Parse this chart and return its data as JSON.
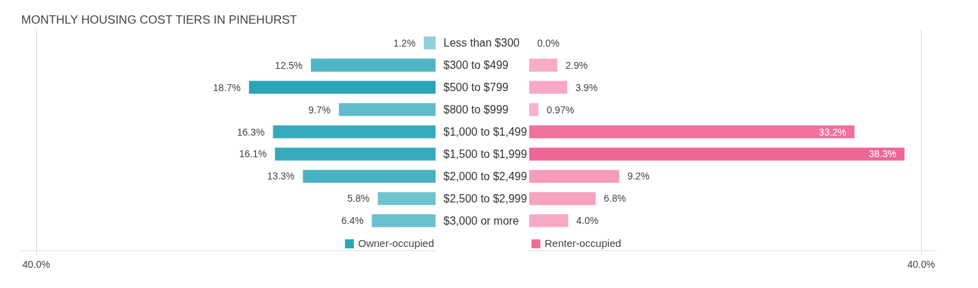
{
  "chart_data": [
    {
      "type": "bar",
      "orientation": "horizontal",
      "title": "MONTHLY HOUSING COST TIERS IN PINEHURST",
      "categories": [
        "Less than $300",
        "$300 to $499",
        "$500 to $799",
        "$800 to $999",
        "$1,000 to $1,499",
        "$1,500 to $1,999",
        "$2,000 to $2,499",
        "$2,500 to $2,999",
        "$3,000 or more"
      ],
      "series": [
        {
          "name": "Owner-occupied",
          "color": "#2aa5b8",
          "colors": [
            "#8fd0da",
            "#4eb5c5",
            "#2aa5b8",
            "#5fbcca",
            "#35aabc",
            "#36abbc",
            "#48b2c2",
            "#6ec3ce",
            "#68c0cc"
          ],
          "values": [
            1.2,
            12.5,
            18.7,
            9.7,
            16.3,
            16.1,
            13.3,
            5.8,
            6.4
          ],
          "value_labels": [
            "1.2%",
            "12.5%",
            "18.7%",
            "9.7%",
            "16.3%",
            "16.1%",
            "13.3%",
            "5.8%",
            "6.4%"
          ]
        }
      ],
      "xlim": [
        41.5,
        0
      ],
      "xticks": [
        {
          "value": 40,
          "label": "40.0%"
        }
      ],
      "grid": "x",
      "legend": "bottom"
    },
    {
      "type": "bar",
      "orientation": "horizontal",
      "categories": [
        null,
        null,
        null,
        null,
        null,
        null,
        null,
        null,
        null
      ],
      "series": [
        {
          "name": "Renter-occupied",
          "color": "#f06b96",
          "colors": [
            "#f8b4c9",
            "#f8adc5",
            "#f7a9c2",
            "#f8b4c9",
            "#f0719b",
            "#ef6793",
            "#f59cb9",
            "#f6a3be",
            "#f7aac3"
          ],
          "values": [
            0.0,
            2.9,
            3.9,
            0.97,
            33.2,
            38.3,
            9.2,
            6.8,
            4.0
          ],
          "value_labels": [
            "0.0%",
            "2.9%",
            "3.9%",
            "0.97%",
            "33.2%",
            "38.3%",
            "9.2%",
            "6.8%",
            "4.0%"
          ]
        }
      ],
      "xlim": [
        0,
        41.5
      ],
      "xticks": [
        {
          "value": 40,
          "label": "40.0%"
        }
      ],
      "grid": "x",
      "legend": "bottom",
      "tick_labels": "x"
    }
  ]
}
